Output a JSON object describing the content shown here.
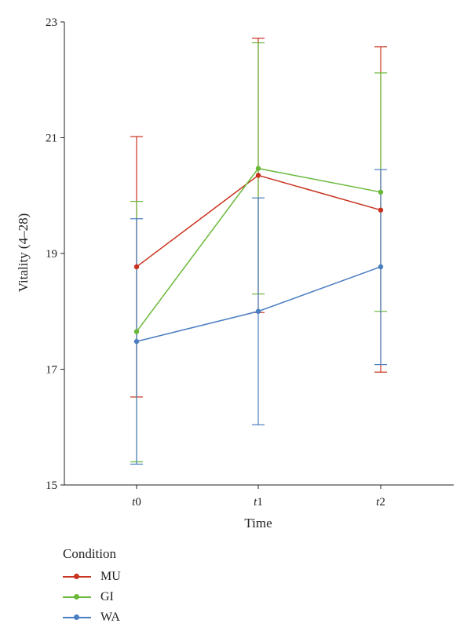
{
  "chart_data": {
    "type": "line",
    "xlabel": "Time",
    "ylabel": "Vitality (4–28)",
    "ylim": [
      15,
      23
    ],
    "yticks": [
      15,
      17,
      19,
      21,
      23
    ],
    "categories": [
      "t0",
      "t1",
      "t2"
    ],
    "error_bars": true,
    "series": [
      {
        "name": "MU",
        "color": "#c8321e",
        "values": [
          18.77,
          20.35,
          19.75
        ],
        "lower": [
          16.52,
          17.98,
          16.95
        ],
        "upper": [
          21.02,
          22.72,
          22.57
        ]
      },
      {
        "name": "GI",
        "color": "#6ab83a",
        "values": [
          17.65,
          20.47,
          20.06
        ],
        "lower": [
          15.4,
          18.3,
          18.0
        ],
        "upper": [
          19.9,
          22.64,
          22.12
        ]
      },
      {
        "name": "WA",
        "color": "#4a7ec2",
        "values": [
          17.48,
          18.0,
          18.77
        ],
        "lower": [
          15.36,
          16.04,
          17.08
        ],
        "upper": [
          19.6,
          19.96,
          20.45
        ]
      }
    ],
    "legend": {
      "title": "Condition",
      "position": "bottom-left"
    },
    "grid": false
  }
}
